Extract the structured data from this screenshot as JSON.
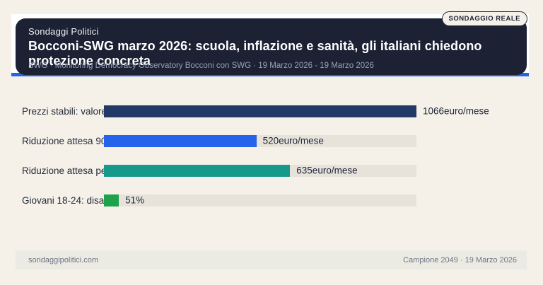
{
  "badge_label": "SONDAGGIO REALE",
  "header": {
    "kicker": "Sondaggi Politici",
    "title": "Bocconi-SWG marzo 2026: scuola, inflazione e sanità, gli italiani chiedono protezione concreta",
    "subtitle": "SWG · Monitoring Democracy Observatory Bocconi con SWG · 19 Marzo 2026 - 19 Marzo 2026"
  },
  "chart_data": {
    "type": "bar",
    "orientation": "horizontal",
    "categories": [
      "Prezzi stabili: valore",
      "Riduzione attesa 90-",
      "Riduzione attesa per",
      "Giovani 18-24: disagi"
    ],
    "values": [
      1066,
      520,
      635,
      51
    ],
    "value_labels": [
      "1066euro/mese",
      "520euro/mese",
      "635euro/mese",
      "51%"
    ],
    "bar_colors": [
      "#1f3a64",
      "#2563eb",
      "#14998a",
      "#1fa24c"
    ],
    "xlim": [
      0,
      1066
    ],
    "grid": false,
    "legend": false,
    "track_color": "#e7e3db"
  },
  "footer": {
    "left": "sondaggipolitici.com",
    "right": "Campione 2049 · 19 Marzo 2026"
  },
  "colors": {
    "background": "#f5f1e9",
    "card": "#1c2134",
    "accent_blue": "#2563eb",
    "bar_navy": "#1f3a64",
    "bar_blue": "#2563eb",
    "bar_teal": "#14998a",
    "bar_green": "#22a74c"
  }
}
